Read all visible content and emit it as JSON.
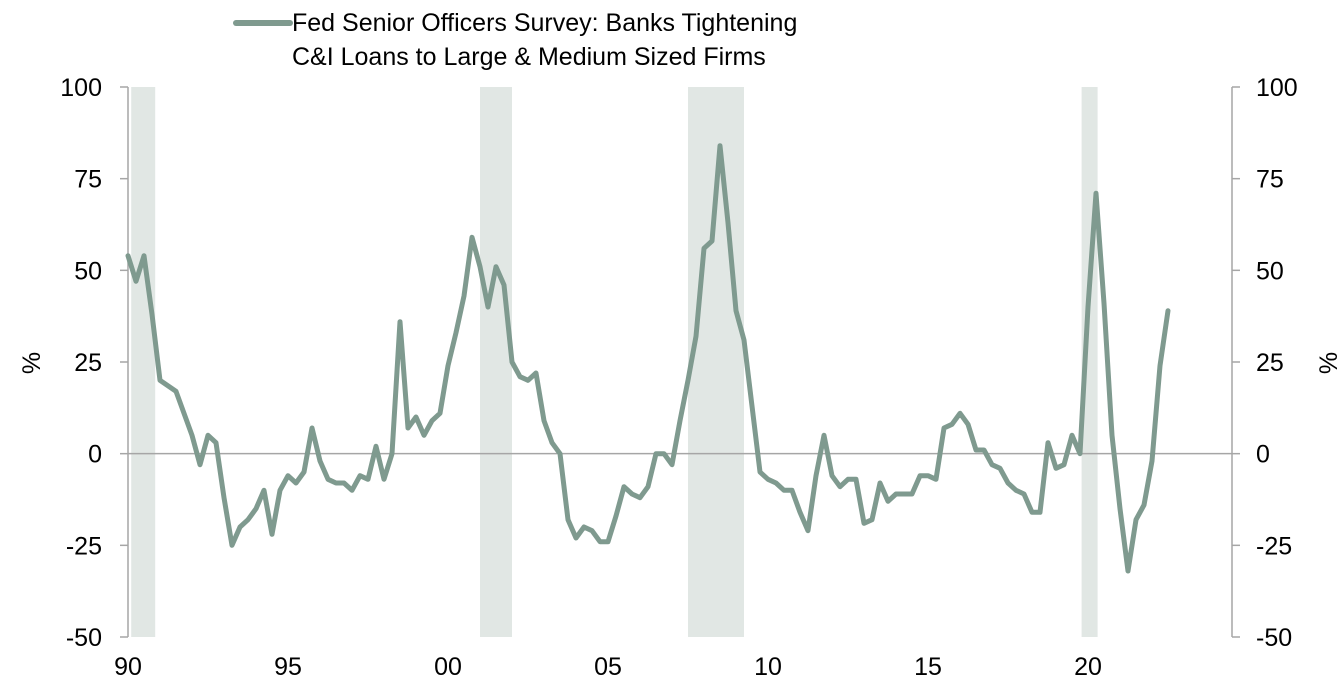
{
  "chart_data": {
    "type": "line",
    "title": "",
    "xlabel": "",
    "ylabel_left": "%",
    "ylabel_right": "%",
    "xlim": [
      1990,
      2024.5
    ],
    "ylim": [
      -50,
      100
    ],
    "x_tick_values": [
      1990,
      1995,
      2000,
      2005,
      2010,
      2015,
      2020
    ],
    "x_tick_labels": [
      "90",
      "95",
      "00",
      "05",
      "10",
      "15",
      "20"
    ],
    "y_tick_values": [
      100,
      75,
      50,
      25,
      0,
      -25,
      -50
    ],
    "y_tick_labels": [
      "100",
      "75",
      "50",
      "25",
      "0",
      "-25",
      "-50"
    ],
    "grid": false,
    "zero_line": true,
    "legend_position": "top-left",
    "line_color": "#7f9a8f",
    "shade_color": "#e1e7e4",
    "recessions": [
      [
        1990.1,
        1990.85
      ],
      [
        2001.0,
        2002.0
      ],
      [
        2007.5,
        2009.25
      ],
      [
        2019.8,
        2020.3
      ]
    ],
    "series": [
      {
        "name": "Fed Senior Officers Survey: Banks Tightening C&I Loans to Large & Medium Sized Firms",
        "x": [
          1990.0,
          1990.25,
          1990.5,
          1990.75,
          1991.0,
          1991.5,
          1991.75,
          1992.0,
          1992.25,
          1992.5,
          1992.75,
          1993.0,
          1993.25,
          1993.5,
          1993.75,
          1994.0,
          1994.25,
          1994.5,
          1994.75,
          1995.0,
          1995.25,
          1995.5,
          1995.75,
          1996.0,
          1996.25,
          1996.5,
          1996.75,
          1997.0,
          1997.25,
          1997.5,
          1997.75,
          1998.0,
          1998.25,
          1998.5,
          1998.75,
          1999.0,
          1999.25,
          1999.5,
          1999.75,
          2000.0,
          2000.25,
          2000.5,
          2000.75,
          2001.0,
          2001.25,
          2001.5,
          2001.75,
          2002.0,
          2002.25,
          2002.5,
          2002.75,
          2003.0,
          2003.25,
          2003.5,
          2003.75,
          2004.0,
          2004.25,
          2004.5,
          2004.75,
          2005.0,
          2005.25,
          2005.5,
          2005.75,
          2006.0,
          2006.25,
          2006.5,
          2006.75,
          2007.0,
          2007.25,
          2007.5,
          2007.75,
          2008.0,
          2008.25,
          2008.5,
          2008.75,
          2009.0,
          2009.25,
          2009.5,
          2009.75,
          2010.0,
          2010.25,
          2010.5,
          2010.75,
          2011.0,
          2011.25,
          2011.5,
          2011.75,
          2012.0,
          2012.25,
          2012.5,
          2012.75,
          2013.0,
          2013.25,
          2013.5,
          2013.75,
          2014.0,
          2014.25,
          2014.5,
          2014.75,
          2015.0,
          2015.25,
          2015.5,
          2015.75,
          2016.0,
          2016.25,
          2016.5,
          2016.75,
          2017.0,
          2017.25,
          2017.5,
          2017.75,
          2018.0,
          2018.25,
          2018.5,
          2018.75,
          2019.0,
          2019.25,
          2019.5,
          2019.75,
          2020.0,
          2020.25,
          2020.5,
          2020.75,
          2021.0,
          2021.25,
          2021.5,
          2021.75,
          2022.0,
          2022.25,
          2022.5
        ],
        "values": [
          54,
          47,
          54,
          38,
          20,
          17,
          11,
          5,
          -3,
          5,
          3,
          -12,
          -25,
          -20,
          -18,
          -15,
          -10,
          -22,
          -10,
          -6,
          -8,
          -5,
          7,
          -2,
          -7,
          -8,
          -8,
          -10,
          -6,
          -7,
          2,
          -7,
          0,
          36,
          7,
          10,
          5,
          9,
          11,
          24,
          33,
          43,
          59,
          51,
          40,
          51,
          46,
          25,
          21,
          20,
          22,
          9,
          3,
          0,
          -18,
          -23,
          -20,
          -21,
          -24,
          -24,
          -17,
          -9,
          -11,
          -12,
          -9,
          0,
          0,
          -3,
          9,
          20,
          32,
          56,
          58,
          84,
          63,
          39,
          31,
          13,
          -5,
          -7,
          -8,
          -10,
          -10,
          -16,
          -21,
          -6,
          5,
          -6,
          -9,
          -7,
          -7,
          -19,
          -18,
          -8,
          -13,
          -11,
          -11,
          -11,
          -6,
          -6,
          -7,
          7,
          8,
          11,
          8,
          1,
          1,
          -3,
          -4,
          -8,
          -10,
          -11,
          -16,
          -16,
          3,
          -4,
          -3,
          5,
          0,
          40,
          71,
          41,
          5,
          -15,
          -32,
          -18,
          -14,
          -2,
          24,
          39
        ]
      }
    ]
  }
}
